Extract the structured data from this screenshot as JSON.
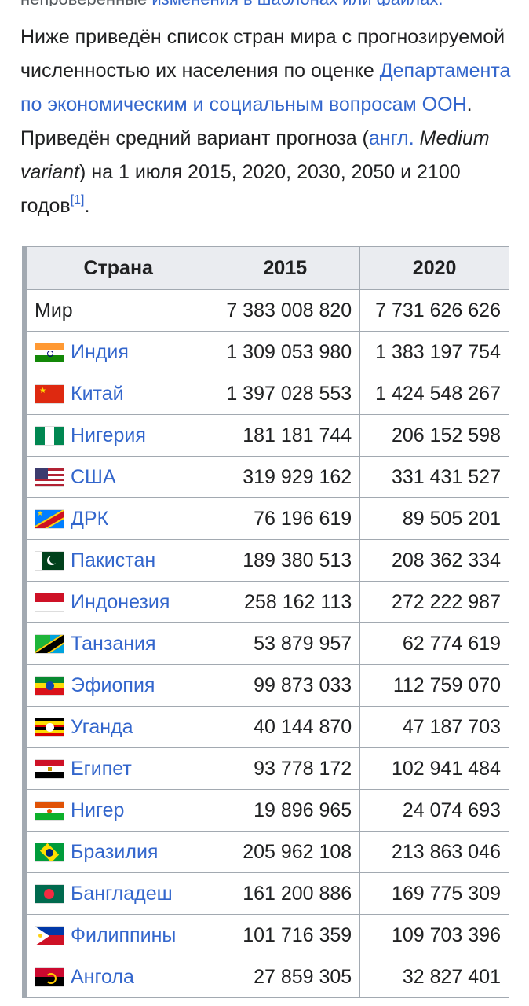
{
  "top_strip": {
    "prefix": "непроверенные",
    "link": "изменения в шаблонах или файлах."
  },
  "intro": {
    "t1": "Ниже приведён список стран мира с прогнозируемой численностью их населения по оценке ",
    "link1": "Департамента по экономическим и социальным вопросам ООН",
    "t2": ". Приведён средний вариант прогноза (",
    "link2": "англ.",
    "t3_italic": "Medium variant",
    "t4": ") на 1 июля 2015, 2020, 2030, 2050 и 2100 годов",
    "ref": "[1]",
    "t5": "."
  },
  "table": {
    "headers": [
      "Страна",
      "2015",
      "2020"
    ],
    "rows": [
      {
        "name": "Мир",
        "flag": "none",
        "v2015": "7 383 008 820",
        "v2020": "7 731 626 626",
        "link": false
      },
      {
        "name": "Индия",
        "flag": "india-flag-icon",
        "v2015": "1 309 053 980",
        "v2020": "1 383 197 754",
        "link": true
      },
      {
        "name": "Китай",
        "flag": "china-flag-icon",
        "v2015": "1 397 028 553",
        "v2020": "1 424 548 267",
        "link": true
      },
      {
        "name": "Нигерия",
        "flag": "nigeria-flag-icon",
        "v2015": "181 181 744",
        "v2020": "206 152 598",
        "link": true
      },
      {
        "name": "США",
        "flag": "usa-flag-icon",
        "v2015": "319 929 162",
        "v2020": "331 431 527",
        "link": true
      },
      {
        "name": "ДРК",
        "flag": "drc-flag-icon",
        "v2015": "76 196 619",
        "v2020": "89 505 201",
        "link": true
      },
      {
        "name": "Пакистан",
        "flag": "pakistan-flag-icon",
        "v2015": "189 380 513",
        "v2020": "208 362 334",
        "link": true
      },
      {
        "name": "Индонезия",
        "flag": "indonesia-flag-icon",
        "v2015": "258 162 113",
        "v2020": "272 222 987",
        "link": true
      },
      {
        "name": "Танзания",
        "flag": "tanzania-flag-icon",
        "v2015": "53 879 957",
        "v2020": "62 774 619",
        "link": true
      },
      {
        "name": "Эфиопия",
        "flag": "ethiopia-flag-icon",
        "v2015": "99 873 033",
        "v2020": "112 759 070",
        "link": true
      },
      {
        "name": "Уганда",
        "flag": "uganda-flag-icon",
        "v2015": "40 144 870",
        "v2020": "47 187 703",
        "link": true
      },
      {
        "name": "Египет",
        "flag": "egypt-flag-icon",
        "v2015": "93 778 172",
        "v2020": "102 941 484",
        "link": true
      },
      {
        "name": "Нигер",
        "flag": "niger-flag-icon",
        "v2015": "19 896 965",
        "v2020": "24 074 693",
        "link": true
      },
      {
        "name": "Бразилия",
        "flag": "brazil-flag-icon",
        "v2015": "205 962 108",
        "v2020": "213 863 046",
        "link": true
      },
      {
        "name": "Бангладеш",
        "flag": "bangladesh-flag-icon",
        "v2015": "161 200 886",
        "v2020": "169 775 309",
        "link": true
      },
      {
        "name": "Филиппины",
        "flag": "philippines-flag-icon",
        "v2015": "101 716 359",
        "v2020": "109 703 396",
        "link": true
      },
      {
        "name": "Ангола",
        "flag": "angola-flag-icon",
        "v2015": "27 859 305",
        "v2020": "32 827 401",
        "link": true
      }
    ]
  },
  "colors": {
    "link": "#3366cc",
    "text": "#202122",
    "header_bg": "#eaecf0",
    "border": "#a2a9b1"
  }
}
